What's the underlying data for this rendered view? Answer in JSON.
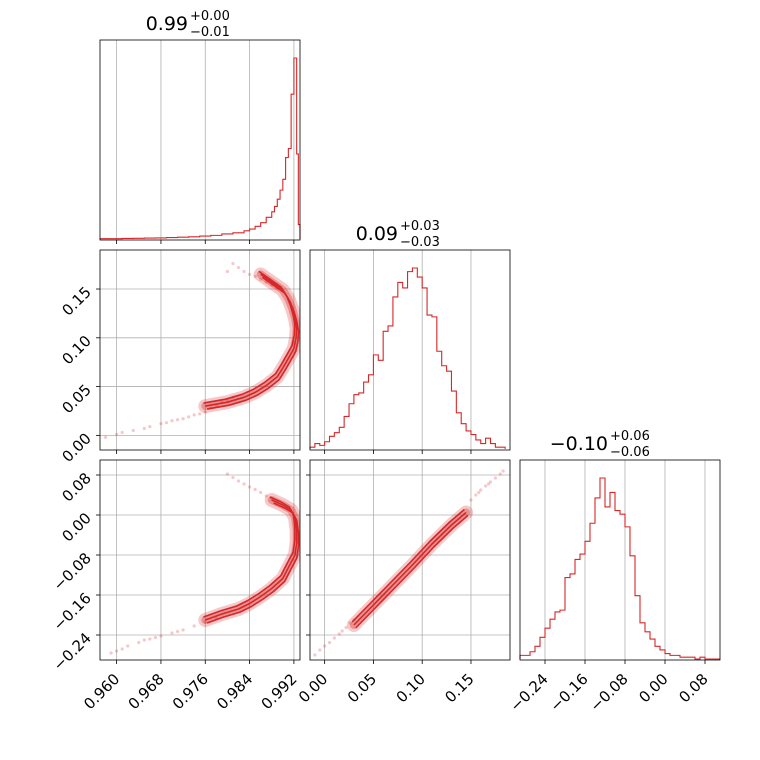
{
  "chart_data": {
    "type": "corner",
    "color": "#d62728",
    "grid": true,
    "parameters": [
      {
        "index": 0,
        "title": {
          "value": "0.99",
          "plus": "+0.00",
          "minus": "−0.01"
        },
        "range": [
          0.957,
          0.9931
        ],
        "ticks": [
          0.96,
          0.968,
          0.976,
          0.984,
          0.992
        ],
        "tick_labels": [
          "0.960",
          "0.968",
          "0.976",
          "0.984",
          "0.992"
        ]
      },
      {
        "index": 1,
        "title": {
          "value": "0.09",
          "plus": "+0.03",
          "minus": "−0.03"
        },
        "range": [
          -0.015,
          0.19
        ],
        "ticks": [
          0.0,
          0.05,
          0.1,
          0.15
        ],
        "tick_labels": [
          "0.00",
          "0.05",
          "0.10",
          "0.15"
        ]
      },
      {
        "index": 2,
        "title": {
          "value": "−0.10",
          "plus": "+0.06",
          "minus": "−0.06"
        },
        "range": [
          -0.29,
          0.11
        ],
        "ticks": [
          -0.24,
          -0.16,
          -0.08,
          0.0,
          0.08
        ],
        "tick_labels": [
          "−0.24",
          "−0.16",
          "−0.08",
          "0.00",
          "0.08"
        ]
      }
    ],
    "histograms": [
      {
        "param": 0,
        "bins": [
          [
            0.957,
            0.002
          ],
          [
            0.959,
            0.002
          ],
          [
            0.961,
            0.003
          ],
          [
            0.963,
            0.004
          ],
          [
            0.965,
            0.005
          ],
          [
            0.967,
            0.006
          ],
          [
            0.969,
            0.008
          ],
          [
            0.971,
            0.01
          ],
          [
            0.973,
            0.012
          ],
          [
            0.975,
            0.016
          ],
          [
            0.977,
            0.02
          ],
          [
            0.979,
            0.028
          ],
          [
            0.981,
            0.034
          ],
          [
            0.983,
            0.045
          ],
          [
            0.984,
            0.055
          ],
          [
            0.985,
            0.07
          ],
          [
            0.986,
            0.09
          ],
          [
            0.987,
            0.12
          ],
          [
            0.988,
            0.15
          ],
          [
            0.9885,
            0.18
          ],
          [
            0.989,
            0.22
          ],
          [
            0.9895,
            0.27
          ],
          [
            0.99,
            0.33
          ],
          [
            0.9905,
            0.45
          ],
          [
            0.991,
            0.5
          ],
          [
            0.9915,
            0.8
          ],
          [
            0.992,
            1.0
          ],
          [
            0.9925,
            0.47
          ],
          [
            0.9928,
            0.08
          ]
        ]
      },
      {
        "param": 1,
        "bins": [
          [
            -0.015,
            0.01
          ],
          [
            -0.01,
            0.03
          ],
          [
            -0.005,
            0.02
          ],
          [
            0.0,
            0.04
          ],
          [
            0.005,
            0.07
          ],
          [
            0.01,
            0.09
          ],
          [
            0.015,
            0.12
          ],
          [
            0.02,
            0.18
          ],
          [
            0.025,
            0.25
          ],
          [
            0.03,
            0.3
          ],
          [
            0.035,
            0.31
          ],
          [
            0.04,
            0.37
          ],
          [
            0.045,
            0.41
          ],
          [
            0.05,
            0.52
          ],
          [
            0.055,
            0.49
          ],
          [
            0.06,
            0.65
          ],
          [
            0.065,
            0.68
          ],
          [
            0.07,
            0.84
          ],
          [
            0.075,
            0.92
          ],
          [
            0.08,
            0.89
          ],
          [
            0.085,
            0.98
          ],
          [
            0.09,
            1.0
          ],
          [
            0.095,
            0.95
          ],
          [
            0.1,
            0.89
          ],
          [
            0.105,
            0.74
          ],
          [
            0.11,
            0.73
          ],
          [
            0.115,
            0.54
          ],
          [
            0.12,
            0.46
          ],
          [
            0.125,
            0.43
          ],
          [
            0.13,
            0.32
          ],
          [
            0.135,
            0.2
          ],
          [
            0.14,
            0.14
          ],
          [
            0.145,
            0.1
          ],
          [
            0.15,
            0.08
          ],
          [
            0.155,
            0.05
          ],
          [
            0.16,
            0.03
          ],
          [
            0.165,
            0.06
          ],
          [
            0.17,
            0.03
          ],
          [
            0.175,
            0.01
          ],
          [
            0.18,
            0.01
          ]
        ]
      },
      {
        "param": 2,
        "bins": [
          [
            -0.29,
            0.02
          ],
          [
            -0.28,
            0.02
          ],
          [
            -0.27,
            0.04
          ],
          [
            -0.26,
            0.07
          ],
          [
            -0.25,
            0.12
          ],
          [
            -0.24,
            0.17
          ],
          [
            -0.23,
            0.22
          ],
          [
            -0.22,
            0.26
          ],
          [
            -0.21,
            0.27
          ],
          [
            -0.2,
            0.45
          ],
          [
            -0.19,
            0.47
          ],
          [
            -0.18,
            0.55
          ],
          [
            -0.17,
            0.58
          ],
          [
            -0.16,
            0.65
          ],
          [
            -0.15,
            0.75
          ],
          [
            -0.14,
            0.89
          ],
          [
            -0.13,
            1.0
          ],
          [
            -0.12,
            0.84
          ],
          [
            -0.11,
            0.92
          ],
          [
            -0.1,
            0.82
          ],
          [
            -0.09,
            0.8
          ],
          [
            -0.08,
            0.73
          ],
          [
            -0.07,
            0.57
          ],
          [
            -0.06,
            0.35
          ],
          [
            -0.05,
            0.2
          ],
          [
            -0.04,
            0.15
          ],
          [
            -0.03,
            0.11
          ],
          [
            -0.02,
            0.07
          ],
          [
            -0.01,
            0.05
          ],
          [
            0.0,
            0.03
          ],
          [
            0.01,
            0.02
          ],
          [
            0.02,
            0.02
          ],
          [
            0.03,
            0.01
          ],
          [
            0.04,
            0.01
          ],
          [
            0.05,
            0.01
          ],
          [
            0.06,
            0.0
          ],
          [
            0.07,
            0.01
          ],
          [
            0.08,
            0.0
          ],
          [
            0.09,
            0.0
          ],
          [
            0.1,
            0.0
          ]
        ]
      }
    ],
    "contours": [
      {
        "x_param": 0,
        "y_param": 1,
        "scatter": [
          [
            0.963,
            0.005
          ],
          [
            0.966,
            0.009
          ],
          [
            0.968,
            0.012
          ],
          [
            0.97,
            0.015
          ],
          [
            0.972,
            0.017
          ],
          [
            0.974,
            0.021
          ],
          [
            0.976,
            0.024
          ],
          [
            0.977,
            0.028
          ],
          [
            0.978,
            0.031
          ],
          [
            0.979,
            0.034
          ],
          [
            0.958,
            -0.002
          ],
          [
            0.96,
            0.001
          ],
          [
            0.961,
            0.003
          ],
          [
            0.965,
            0.007
          ],
          [
            0.969,
            0.013
          ],
          [
            0.971,
            0.016
          ],
          [
            0.973,
            0.019
          ],
          [
            0.975,
            0.022
          ],
          [
            0.98,
            0.036
          ],
          [
            0.981,
            0.039
          ],
          [
            0.98,
            0.168
          ],
          [
            0.982,
            0.172
          ],
          [
            0.981,
            0.176
          ],
          [
            0.983,
            0.168
          ],
          [
            0.984,
            0.165
          ],
          [
            0.985,
            0.163
          ],
          [
            0.986,
            0.16
          ],
          [
            0.987,
            0.157
          ],
          [
            0.988,
            0.154
          ],
          [
            0.989,
            0.151
          ]
        ],
        "ridge": [
          [
            0.976,
            0.03
          ],
          [
            0.98,
            0.034
          ],
          [
            0.983,
            0.039
          ],
          [
            0.985,
            0.044
          ],
          [
            0.987,
            0.051
          ],
          [
            0.989,
            0.06
          ],
          [
            0.99,
            0.069
          ],
          [
            0.991,
            0.079
          ],
          [
            0.992,
            0.089
          ],
          [
            0.9924,
            0.1
          ],
          [
            0.9925,
            0.11
          ],
          [
            0.9922,
            0.12
          ],
          [
            0.9917,
            0.13
          ],
          [
            0.991,
            0.14
          ],
          [
            0.99,
            0.149
          ],
          [
            0.988,
            0.157
          ],
          [
            0.986,
            0.165
          ]
        ],
        "band_width": 0.0012
      },
      {
        "x_param": 0,
        "y_param": 2,
        "scatter": [
          [
            0.96,
            -0.272
          ],
          [
            0.962,
            -0.262
          ],
          [
            0.964,
            -0.255
          ],
          [
            0.966,
            -0.248
          ],
          [
            0.968,
            -0.242
          ],
          [
            0.97,
            -0.236
          ],
          [
            0.972,
            -0.23
          ],
          [
            0.974,
            -0.222
          ],
          [
            0.976,
            -0.214
          ],
          [
            0.978,
            -0.206
          ],
          [
            0.959,
            -0.276
          ],
          [
            0.961,
            -0.268
          ],
          [
            0.965,
            -0.25
          ],
          [
            0.967,
            -0.245
          ],
          [
            0.971,
            -0.233
          ],
          [
            0.98,
            0.082
          ],
          [
            0.981,
            0.075
          ],
          [
            0.982,
            0.068
          ],
          [
            0.983,
            0.062
          ],
          [
            0.984,
            0.056
          ],
          [
            0.985,
            0.051
          ],
          [
            0.986,
            0.045
          ],
          [
            0.987,
            0.038
          ],
          [
            0.988,
            0.031
          ],
          [
            0.989,
            0.026
          ]
        ],
        "ridge": [
          [
            0.976,
            -0.21
          ],
          [
            0.979,
            -0.198
          ],
          [
            0.982,
            -0.188
          ],
          [
            0.984,
            -0.177
          ],
          [
            0.986,
            -0.163
          ],
          [
            0.988,
            -0.147
          ],
          [
            0.99,
            -0.127
          ],
          [
            0.991,
            -0.105
          ],
          [
            0.9922,
            -0.08
          ],
          [
            0.9925,
            -0.055
          ],
          [
            0.9925,
            -0.03
          ],
          [
            0.9922,
            -0.005
          ],
          [
            0.9915,
            0.01
          ],
          [
            0.99,
            0.02
          ],
          [
            0.988,
            0.03
          ]
        ],
        "band_width": 0.0012
      },
      {
        "x_param": 1,
        "y_param": 2,
        "scatter": [
          [
            -0.01,
            -0.28
          ],
          [
            -0.005,
            -0.27
          ],
          [
            0.0,
            -0.262
          ],
          [
            0.005,
            -0.255
          ],
          [
            0.01,
            -0.246
          ],
          [
            0.015,
            -0.238
          ],
          [
            0.018,
            -0.232
          ],
          [
            0.022,
            -0.225
          ],
          [
            0.026,
            -0.216
          ],
          [
            0.03,
            -0.21
          ],
          [
            0.15,
            0.03
          ],
          [
            0.155,
            0.04
          ],
          [
            0.16,
            0.05
          ],
          [
            0.165,
            0.058
          ],
          [
            0.17,
            0.066
          ],
          [
            0.175,
            0.074
          ],
          [
            0.18,
            0.082
          ],
          [
            0.183,
            0.088
          ],
          [
            0.168,
            0.062
          ],
          [
            0.158,
            0.045
          ]
        ],
        "ridge": [
          [
            0.03,
            -0.22
          ],
          [
            0.05,
            -0.18
          ],
          [
            0.07,
            -0.14
          ],
          [
            0.09,
            -0.1
          ],
          [
            0.11,
            -0.058
          ],
          [
            0.13,
            -0.02
          ],
          [
            0.145,
            0.005
          ]
        ],
        "band_width": 0.01
      }
    ]
  }
}
